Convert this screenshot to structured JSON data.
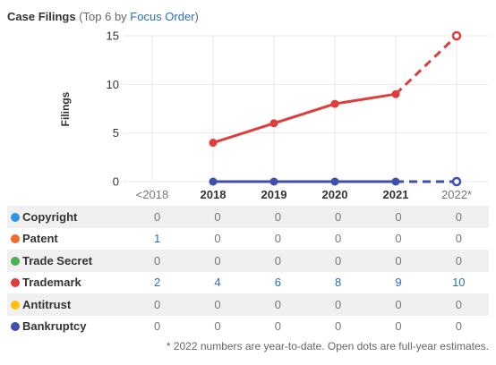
{
  "header": {
    "title": "Case Filings",
    "subtitle_prefix": "(Top 6 by ",
    "subtitle_link": "Focus Order",
    "subtitle_suffix": ")"
  },
  "chart_data": {
    "type": "line",
    "ylabel": "Filings",
    "xlabel": "",
    "categories": [
      "<2018",
      "2018",
      "2019",
      "2020",
      "2021",
      "2022*"
    ],
    "ylim": [
      0,
      15
    ],
    "yticks": [
      0,
      5,
      10,
      15
    ],
    "grid": true,
    "plotted_series": [
      "Trademark",
      "Bankruptcy"
    ],
    "estimated_points": {
      "Trademark": 15,
      "Bankruptcy": 0
    },
    "series": [
      {
        "name": "Copyright",
        "color": "#2f95e8",
        "values": [
          0,
          0,
          0,
          0,
          0,
          0
        ]
      },
      {
        "name": "Patent",
        "color": "#f26a2e",
        "values": [
          1,
          0,
          0,
          0,
          0,
          0
        ]
      },
      {
        "name": "Trade Secret",
        "color": "#4caf50",
        "values": [
          0,
          0,
          0,
          0,
          0,
          0
        ]
      },
      {
        "name": "Trademark",
        "color": "#e03c3c",
        "values": [
          2,
          4,
          6,
          8,
          9,
          10
        ]
      },
      {
        "name": "Antitrust",
        "color": "#ffc107",
        "values": [
          0,
          0,
          0,
          0,
          0,
          0
        ]
      },
      {
        "name": "Bankruptcy",
        "color": "#3f4fad",
        "values": [
          0,
          0,
          0,
          0,
          0,
          0
        ]
      }
    ]
  },
  "footnote": "* 2022 numbers are year-to-date. Open dots are full-year estimates."
}
